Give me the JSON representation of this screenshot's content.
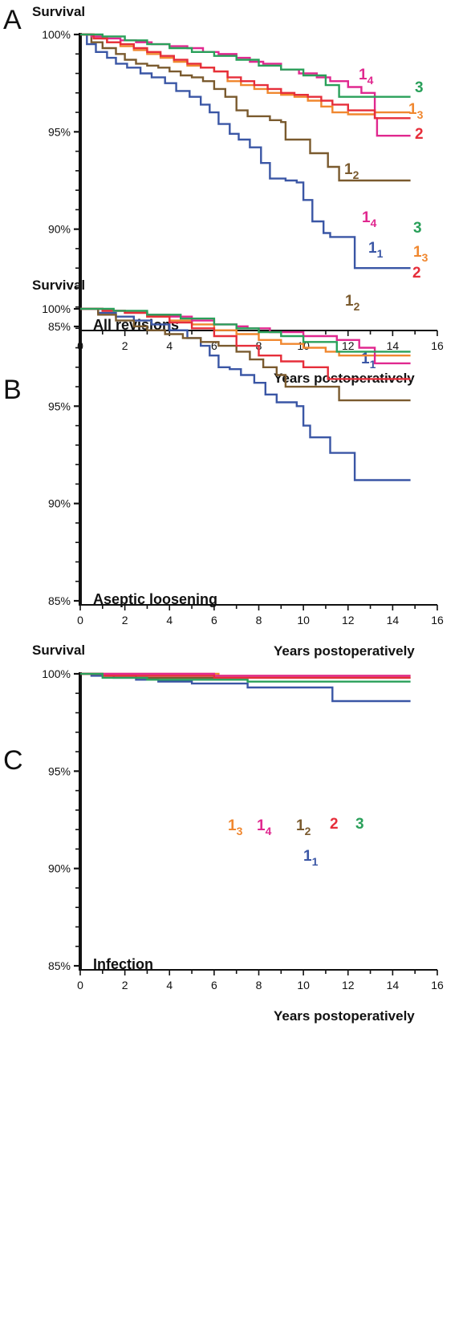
{
  "chart_data": [
    {
      "type": "line",
      "panel": "A",
      "title": "All revisions",
      "ylabel": "Survival",
      "xlabel": "Years postoperatively",
      "xlim": [
        0,
        16
      ],
      "ylim": [
        85,
        100
      ],
      "x_ticks": [
        "0",
        "2",
        "4",
        "6",
        "8",
        "10",
        "12",
        "14",
        "16"
      ],
      "y_ticks": [
        "85%",
        "90%",
        "95%",
        "100%"
      ],
      "series": [
        {
          "label_main": "1",
          "label_sub": "1",
          "color": "#3a56a5",
          "x": [
            0,
            0.3,
            0.7,
            1.2,
            1.6,
            2.1,
            2.7,
            3.2,
            3.8,
            4.3,
            4.9,
            5.4,
            5.8,
            6.2,
            6.7,
            7.1,
            7.6,
            8.1,
            8.5,
            9.2,
            9.7,
            10.0,
            10.4,
            10.9,
            11.2,
            11.6,
            12.3,
            14.8
          ],
          "y": [
            100,
            99.5,
            99.1,
            98.8,
            98.5,
            98.3,
            98.0,
            97.8,
            97.5,
            97.1,
            96.8,
            96.4,
            96.0,
            95.4,
            94.9,
            94.6,
            94.2,
            93.4,
            92.6,
            92.5,
            92.4,
            91.5,
            90.4,
            89.8,
            89.6,
            89.6,
            88.0,
            88.0
          ]
        },
        {
          "label_main": "1",
          "label_sub": "2",
          "color": "#7a5a2e",
          "x": [
            0,
            0.5,
            1.0,
            1.6,
            2.0,
            2.5,
            3.0,
            3.5,
            4.0,
            4.5,
            5.0,
            5.5,
            6.0,
            6.5,
            7.0,
            7.5,
            8.0,
            8.5,
            9.0,
            9.2,
            10.3,
            11.1,
            11.6,
            14.8
          ],
          "y": [
            100,
            99.6,
            99.3,
            99.0,
            98.7,
            98.5,
            98.4,
            98.3,
            98.1,
            97.9,
            97.8,
            97.6,
            97.2,
            96.8,
            96.1,
            95.8,
            95.8,
            95.6,
            95.5,
            94.6,
            93.9,
            93.2,
            92.5,
            92.5
          ]
        },
        {
          "label_main": "1",
          "label_sub": "3",
          "color": "#f0872f",
          "x": [
            0,
            0.6,
            1.2,
            1.8,
            2.4,
            3.0,
            3.6,
            4.2,
            4.8,
            5.4,
            6.0,
            6.6,
            7.2,
            7.8,
            8.4,
            9.0,
            9.6,
            10.2,
            10.8,
            11.3,
            12.0,
            13.2,
            14.8
          ],
          "y": [
            100,
            99.8,
            99.6,
            99.4,
            99.2,
            99.0,
            98.8,
            98.6,
            98.4,
            98.3,
            98.1,
            97.6,
            97.4,
            97.2,
            97.0,
            96.9,
            96.8,
            96.6,
            96.3,
            96.0,
            95.9,
            96.0,
            96.0
          ]
        },
        {
          "label_main": "1",
          "label_sub": "4",
          "color": "#e0288f",
          "x": [
            0,
            0.5,
            1.0,
            1.8,
            2.5,
            3.2,
            4.0,
            4.8,
            5.5,
            6.2,
            7.0,
            7.6,
            8.2,
            9.0,
            9.8,
            10.6,
            11.2,
            12.0,
            12.6,
            13.2,
            13.3,
            14.8
          ],
          "y": [
            100,
            99.9,
            99.8,
            99.7,
            99.6,
            99.5,
            99.4,
            99.3,
            99.1,
            99.0,
            98.8,
            98.6,
            98.5,
            98.2,
            98.0,
            97.8,
            97.6,
            97.3,
            97.0,
            95.7,
            94.8,
            94.8
          ]
        },
        {
          "label_main": "2",
          "label_sub": "",
          "color": "#e62e3a",
          "x": [
            0,
            0.6,
            1.2,
            1.8,
            2.4,
            3.0,
            3.6,
            4.2,
            4.8,
            5.4,
            6.0,
            6.6,
            7.2,
            7.8,
            8.4,
            9.0,
            9.6,
            10.2,
            10.8,
            11.3,
            12.0,
            13.2,
            14.8
          ],
          "y": [
            100,
            99.8,
            99.6,
            99.5,
            99.3,
            99.1,
            98.9,
            98.7,
            98.5,
            98.3,
            98.1,
            97.8,
            97.6,
            97.4,
            97.2,
            97.0,
            96.9,
            96.8,
            96.6,
            96.4,
            96.1,
            95.7,
            95.7
          ]
        },
        {
          "label_main": "3",
          "label_sub": "",
          "color": "#2aa05a",
          "x": [
            0,
            1.0,
            2.0,
            3.0,
            4.0,
            5.0,
            6.0,
            7.0,
            8.0,
            9.0,
            10.0,
            11.0,
            11.6,
            14.8
          ],
          "y": [
            100,
            99.9,
            99.7,
            99.5,
            99.3,
            99.1,
            98.9,
            98.7,
            98.4,
            98.2,
            97.9,
            97.4,
            96.8,
            96.8
          ]
        }
      ]
    },
    {
      "type": "line",
      "panel": "B",
      "title": "Aseptic loosening",
      "ylabel": "Survival",
      "xlabel": "Years postoperatively",
      "xlim": [
        0,
        16
      ],
      "ylim": [
        85,
        100
      ],
      "x_ticks": [
        "0",
        "2",
        "4",
        "6",
        "8",
        "10",
        "12",
        "14",
        "16"
      ],
      "y_ticks": [
        "85%",
        "90%",
        "95%",
        "100%"
      ],
      "series": [
        {
          "label_main": "1",
          "label_sub": "1",
          "color": "#3a56a5",
          "x": [
            0,
            0.8,
            1.6,
            2.4,
            3.2,
            4.0,
            4.8,
            5.4,
            5.8,
            6.2,
            6.7,
            7.2,
            7.8,
            8.3,
            8.8,
            9.7,
            10.0,
            10.3,
            11.2,
            12.3,
            14.8
          ],
          "y": [
            100,
            99.8,
            99.6,
            99.4,
            99.2,
            98.9,
            98.5,
            98.1,
            97.6,
            97.0,
            96.9,
            96.6,
            96.2,
            95.6,
            95.2,
            95.0,
            94.0,
            93.4,
            92.6,
            91.2,
            91.2
          ]
        },
        {
          "label_main": "1",
          "label_sub": "2",
          "color": "#7a5a2e",
          "x": [
            0,
            0.8,
            1.6,
            2.4,
            3.0,
            3.8,
            4.6,
            5.4,
            6.2,
            7.0,
            7.6,
            8.2,
            8.8,
            9.2,
            11.6,
            14.8
          ],
          "y": [
            100,
            99.7,
            99.4,
            99.1,
            98.9,
            98.7,
            98.5,
            98.3,
            98.1,
            97.8,
            97.4,
            97.0,
            96.6,
            96.0,
            95.3,
            95.3
          ]
        },
        {
          "label_main": "1",
          "label_sub": "3",
          "color": "#f0872f",
          "x": [
            0,
            1.0,
            2.0,
            3.0,
            4.0,
            5.0,
            6.0,
            7.0,
            8.0,
            9.0,
            10.0,
            11.0,
            11.6,
            13.2,
            14.8
          ],
          "y": [
            100,
            99.9,
            99.8,
            99.6,
            99.4,
            99.2,
            98.9,
            98.7,
            98.4,
            98.2,
            98.0,
            97.8,
            97.6,
            97.6,
            97.6
          ]
        },
        {
          "label_main": "1",
          "label_sub": "4",
          "color": "#e0288f",
          "x": [
            0,
            1.0,
            2.0,
            3.0,
            4.0,
            5.0,
            6.0,
            7.0,
            7.5,
            8.5,
            10.0,
            11.5,
            12.5,
            13.2,
            14.8
          ],
          "y": [
            100,
            99.9,
            99.8,
            99.7,
            99.6,
            99.4,
            99.2,
            99.1,
            99.0,
            98.8,
            98.6,
            98.4,
            98.0,
            97.2,
            97.2
          ]
        },
        {
          "label_main": "2",
          "label_sub": "",
          "color": "#e62e3a",
          "x": [
            0,
            1.0,
            2.0,
            3.0,
            4.0,
            5.0,
            6.0,
            7.0,
            8.0,
            9.0,
            10.0,
            11.1,
            14.8
          ],
          "y": [
            100,
            99.9,
            99.8,
            99.6,
            99.3,
            99.0,
            98.6,
            98.1,
            97.6,
            97.3,
            97.0,
            96.4,
            96.4
          ]
        },
        {
          "label_main": "3",
          "label_sub": "",
          "color": "#2aa05a",
          "x": [
            0,
            1.5,
            3.0,
            4.5,
            6.0,
            7.0,
            8.0,
            9.0,
            10.0,
            11.5,
            14.8
          ],
          "y": [
            100,
            99.9,
            99.7,
            99.5,
            99.2,
            99.0,
            98.8,
            98.6,
            98.3,
            97.8,
            97.8
          ]
        }
      ]
    },
    {
      "type": "line",
      "panel": "C",
      "title": "Infection",
      "ylabel": "Survival",
      "xlabel": "Years postoperatively",
      "xlim": [
        0,
        16
      ],
      "ylim": [
        85,
        100
      ],
      "x_ticks": [
        "0",
        "2",
        "4",
        "6",
        "8",
        "10",
        "12",
        "14",
        "16"
      ],
      "y_ticks": [
        "85%",
        "90%",
        "95%",
        "100%"
      ],
      "series": [
        {
          "label_main": "1",
          "label_sub": "1",
          "color": "#3a56a5",
          "x": [
            0,
            0.5,
            1.5,
            2.5,
            3.5,
            5.0,
            6.5,
            7.5,
            11.3,
            14.8
          ],
          "y": [
            100,
            99.9,
            99.8,
            99.7,
            99.6,
            99.5,
            99.5,
            99.3,
            98.6,
            98.6
          ]
        },
        {
          "label_main": "1",
          "label_sub": "2",
          "color": "#7a5a2e",
          "x": [
            0,
            1.0,
            2.5,
            4.0,
            6.0,
            9.0,
            14.8
          ],
          "y": [
            100,
            99.9,
            99.8,
            99.8,
            99.8,
            99.8,
            99.8
          ]
        },
        {
          "label_main": "1",
          "label_sub": "3",
          "color": "#f0872f",
          "x": [
            0,
            2.0,
            6.2,
            14.8
          ],
          "y": [
            100,
            100,
            99.9,
            99.9
          ]
        },
        {
          "label_main": "1",
          "label_sub": "4",
          "color": "#e0288f",
          "x": [
            0,
            3.0,
            6.0,
            14.8
          ],
          "y": [
            100,
            100,
            99.9,
            99.9
          ]
        },
        {
          "label_main": "2",
          "label_sub": "",
          "color": "#e62e3a",
          "x": [
            0,
            1.0,
            3.0,
            6.0,
            14.8
          ],
          "y": [
            100,
            99.9,
            99.9,
            99.8,
            99.8
          ]
        },
        {
          "label_main": "3",
          "label_sub": "",
          "color": "#2aa05a",
          "x": [
            0,
            1.0,
            3.0,
            7.5,
            14.8
          ],
          "y": [
            100,
            99.8,
            99.7,
            99.6,
            99.6
          ]
        }
      ]
    }
  ]
}
